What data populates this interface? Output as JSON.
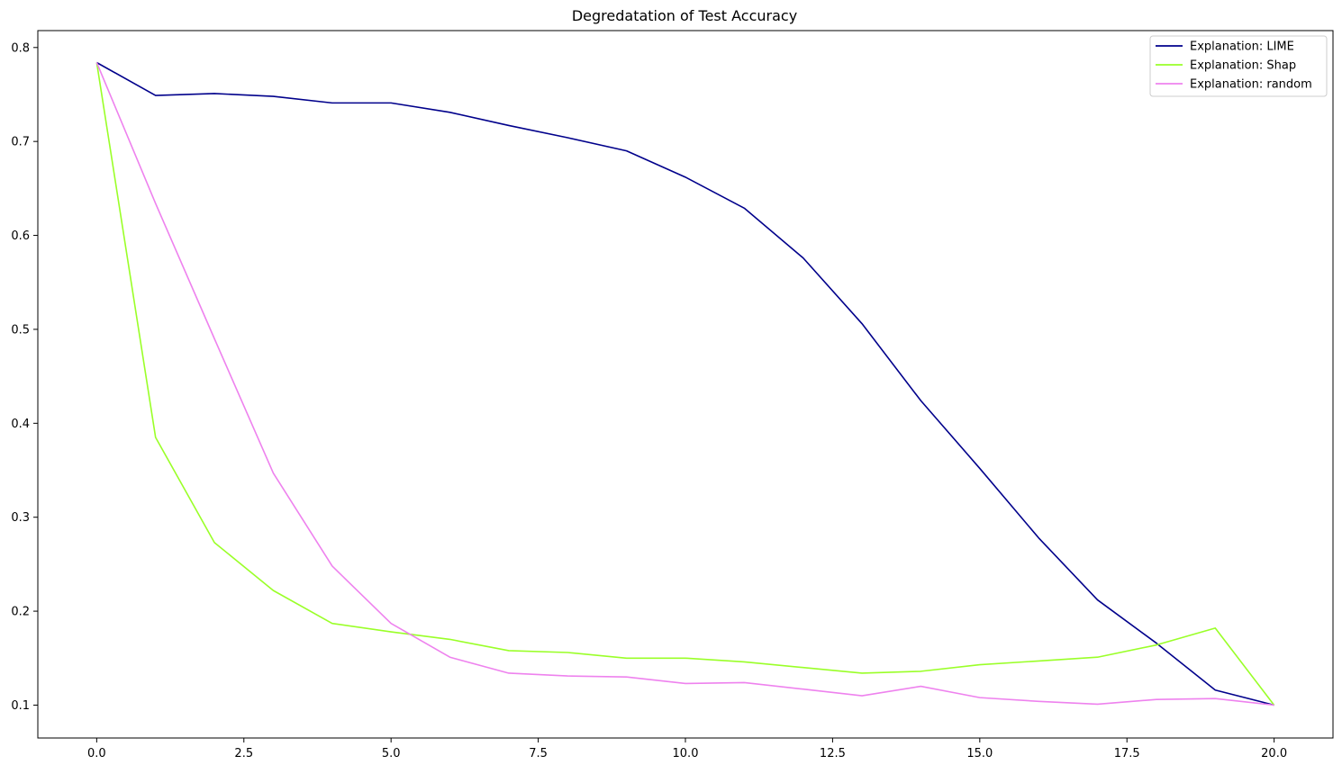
{
  "chart_data": {
    "type": "line",
    "title": "Degredatation of Test Accuracy",
    "xlabel": "",
    "ylabel": "",
    "xlim": [
      -1.0,
      21.0
    ],
    "ylim": [
      0.065,
      0.818
    ],
    "xticks": [
      0.0,
      2.5,
      5.0,
      7.5,
      10.0,
      12.5,
      15.0,
      17.5,
      20.0
    ],
    "xtick_labels": [
      "0.0",
      "2.5",
      "5.0",
      "7.5",
      "10.0",
      "12.5",
      "15.0",
      "17.5",
      "20.0"
    ],
    "yticks": [
      0.1,
      0.2,
      0.3,
      0.4,
      0.5,
      0.6,
      0.7,
      0.8
    ],
    "ytick_labels": [
      "0.1",
      "0.2",
      "0.3",
      "0.4",
      "0.5",
      "0.6",
      "0.7",
      "0.8"
    ],
    "grid": false,
    "legend_position": "top-right",
    "x": [
      0,
      1,
      2,
      3,
      4,
      5,
      6,
      7,
      8,
      9,
      10,
      11,
      12,
      13,
      14,
      15,
      16,
      17,
      18,
      19,
      20
    ],
    "series": [
      {
        "name": "Explanation: LIME",
        "color": "#00008b",
        "values": [
          0.784,
          0.749,
          0.751,
          0.748,
          0.741,
          0.741,
          0.731,
          0.717,
          0.704,
          0.69,
          0.662,
          0.629,
          0.576,
          0.506,
          0.424,
          0.352,
          0.278,
          0.212,
          0.166,
          0.116,
          0.1
        ]
      },
      {
        "name": "Explanation: Shap",
        "color": "#9aff28",
        "values": [
          0.784,
          0.385,
          0.273,
          0.222,
          0.187,
          0.178,
          0.17,
          0.158,
          0.156,
          0.15,
          0.15,
          0.146,
          0.14,
          0.134,
          0.136,
          0.143,
          0.147,
          0.151,
          0.164,
          0.182,
          0.1
        ]
      },
      {
        "name": "Explanation: random",
        "color": "#ee82ee",
        "values": [
          0.784,
          0.634,
          0.49,
          0.347,
          0.248,
          0.187,
          0.151,
          0.134,
          0.131,
          0.13,
          0.123,
          0.124,
          0.117,
          0.11,
          0.12,
          0.108,
          0.104,
          0.101,
          0.106,
          0.107,
          0.1
        ]
      }
    ]
  }
}
